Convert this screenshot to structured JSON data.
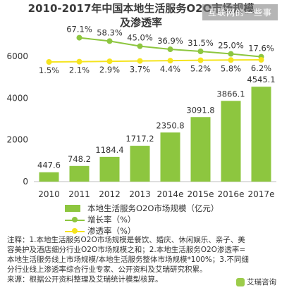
{
  "watermark": "互联网的一些事",
  "chart_data": {
    "type": "bar",
    "title_line1": "2010-2017年中国本地生活服务O2O市场规模",
    "title_line2": "及渗透率",
    "categories": [
      "2010",
      "2011",
      "2012",
      "2013",
      "2014e",
      "2015e",
      "2016e",
      "2017e"
    ],
    "series": [
      {
        "name": "本地生活服务O2O市场规模（亿元）",
        "type": "bar",
        "color": "#8dc63f",
        "values": [
          447.6,
          748.2,
          1184.4,
          1717.2,
          2350.8,
          3091.8,
          3866.1,
          4545.1
        ]
      },
      {
        "name": "增长率（%）",
        "type": "line",
        "color": "#8dc63f",
        "labels": [
          "",
          "67.1%",
          "58.3%",
          "45.0%",
          "36.9%",
          "31.5%",
          "25.0%",
          "17.6%"
        ],
        "values": [
          null,
          67.1,
          58.3,
          45.0,
          36.9,
          31.5,
          25.0,
          17.6
        ]
      },
      {
        "name": "渗透率（%）",
        "type": "line",
        "color": "#f5e41e",
        "labels": [
          "1.5%",
          "2.1%",
          "2.9%",
          "3.7%",
          "4.4%",
          "5.2%",
          "5.8%",
          "6.2%"
        ],
        "values": [
          1.5,
          2.1,
          2.9,
          3.7,
          4.4,
          5.2,
          5.8,
          6.2
        ]
      }
    ],
    "y_ticks": [
      "0",
      "2000",
      "4000",
      "6000"
    ],
    "ylim": [
      0,
      6000
    ],
    "grid": false,
    "legend_position": "bottom"
  },
  "notes": {
    "line1": "注释：1.本地生活服务O2O市场规模是餐饮、婚庆、休闲娱乐、亲子、美",
    "line2": "容美护及酒店细分行业O2O市场规模之和；2.本地生活服务O2O渗透率=",
    "line3": "本地生活服务线上市场规模/本地生活服务整体市场规模*100%；3.不同细",
    "line4": "分行业线上渗透率综合行业专家、公开资料及艾瑞研究积累。",
    "line5": "来源：根据公开资料整理及艾瑞统计模型核算。"
  },
  "source_logo": "艾瑞咨询"
}
